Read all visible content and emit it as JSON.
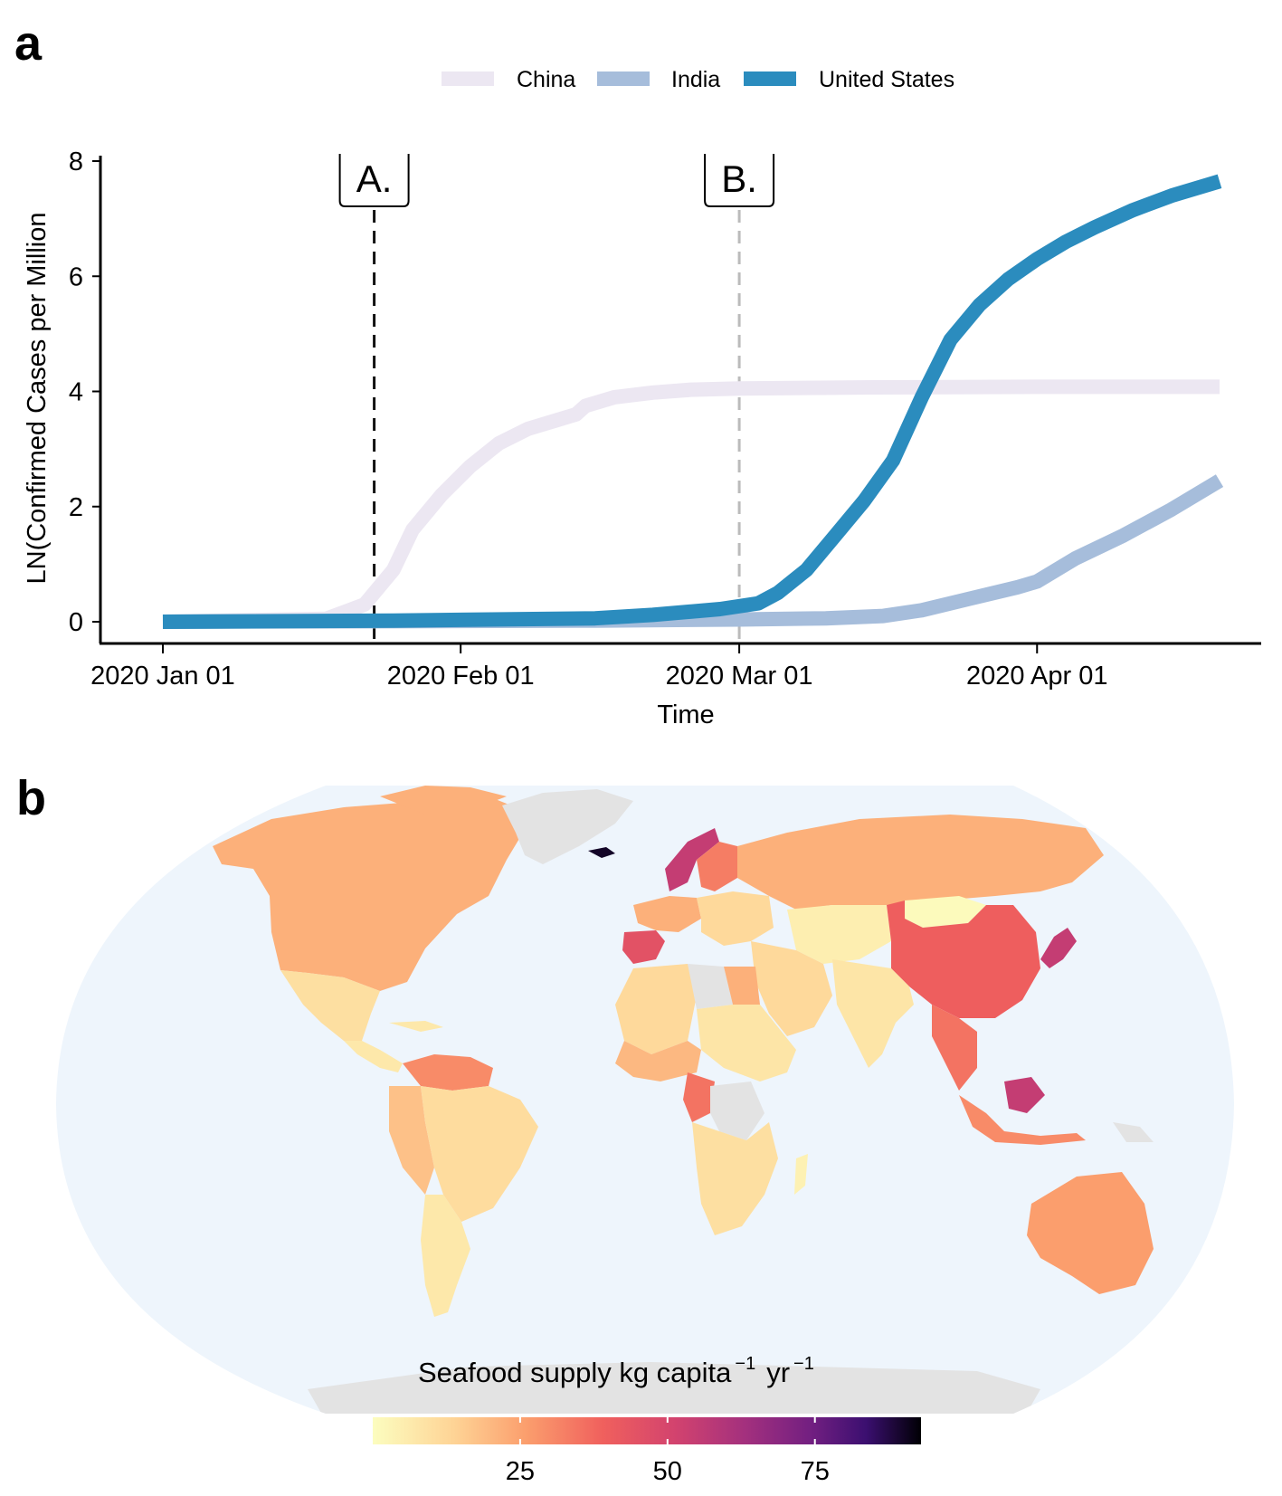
{
  "panel_a_label": "a",
  "panel_b_label": "b",
  "colors": {
    "China": "#ece7f2",
    "India": "#a6bddb",
    "United States": "#2b8cbe",
    "ocean": "#eef5fc",
    "no_data": "#e3e3e3"
  },
  "chart_data": [
    {
      "type": "line",
      "xlabel": "Time",
      "ylabel": "LN(Confirmed Cases per Million",
      "ylim": [
        0,
        8
      ],
      "yticks": [
        "0",
        "2",
        "4",
        "6",
        "8"
      ],
      "xlim": [
        "2020-01-01",
        "2020-04-20"
      ],
      "xticks": [
        {
          "date": "2020-01-01",
          "label": "2020 Jan 01"
        },
        {
          "date": "2020-02-01",
          "label": "2020 Feb 01"
        },
        {
          "date": "2020-03-01",
          "label": "2020 Mar 01"
        },
        {
          "date": "2020-04-01",
          "label": "2020 Apr 01"
        }
      ],
      "legend_position": "top",
      "grid": false,
      "vlines": [
        {
          "date": "2020-01-23",
          "label": "A.",
          "color": "#111111"
        },
        {
          "date": "2020-03-01",
          "label": "B.",
          "color": "#bbbbbb"
        }
      ],
      "series": [
        {
          "name": "China",
          "x": [
            "2020-01-01",
            "2020-01-18",
            "2020-01-22",
            "2020-01-25",
            "2020-01-27",
            "2020-01-30",
            "2020-02-02",
            "2020-02-05",
            "2020-02-08",
            "2020-02-11",
            "2020-02-13",
            "2020-02-14",
            "2020-02-17",
            "2020-02-21",
            "2020-02-25",
            "2020-03-01",
            "2020-03-15",
            "2020-04-01",
            "2020-04-20"
          ],
          "values": [
            0,
            0.05,
            0.3,
            0.9,
            1.6,
            2.2,
            2.7,
            3.1,
            3.35,
            3.5,
            3.6,
            3.75,
            3.9,
            3.98,
            4.03,
            4.05,
            4.07,
            4.08,
            4.08
          ]
        },
        {
          "name": "India",
          "x": [
            "2020-01-01",
            "2020-02-15",
            "2020-03-01",
            "2020-03-10",
            "2020-03-16",
            "2020-03-20",
            "2020-03-25",
            "2020-03-30",
            "2020-04-01",
            "2020-04-05",
            "2020-04-10",
            "2020-04-15",
            "2020-04-20"
          ],
          "values": [
            0,
            0.02,
            0.04,
            0.06,
            0.1,
            0.2,
            0.4,
            0.6,
            0.7,
            1.1,
            1.5,
            1.95,
            2.45
          ]
        },
        {
          "name": "United States",
          "x": [
            "2020-01-01",
            "2020-01-25",
            "2020-02-15",
            "2020-02-21",
            "2020-02-28",
            "2020-03-03",
            "2020-03-05",
            "2020-03-08",
            "2020-03-11",
            "2020-03-14",
            "2020-03-17",
            "2020-03-20",
            "2020-03-23",
            "2020-03-26",
            "2020-03-29",
            "2020-04-01",
            "2020-04-04",
            "2020-04-07",
            "2020-04-11",
            "2020-04-15",
            "2020-04-20"
          ],
          "values": [
            0,
            0.02,
            0.06,
            0.12,
            0.22,
            0.32,
            0.5,
            0.9,
            1.5,
            2.1,
            2.8,
            3.9,
            4.9,
            5.5,
            5.95,
            6.3,
            6.6,
            6.85,
            7.15,
            7.4,
            7.65
          ]
        }
      ]
    },
    {
      "type": "heatmap",
      "subtype": "choropleth",
      "projection": "Robinson",
      "legend_title": {
        "main": "Seafood  supply  kg  capita",
        "exp1": "−1",
        "mid": "yr",
        "exp2": "−1"
      },
      "colorbar": {
        "min": 0,
        "max": 93,
        "ticks": [
          25,
          50,
          75
        ],
        "palette": "magma-reversed",
        "position": "bottom"
      },
      "values_by_region": [
        {
          "region": "North America",
          "value": 22
        },
        {
          "region": "Greenland",
          "value": null
        },
        {
          "region": "Mexico",
          "value": 10
        },
        {
          "region": "Central America",
          "value": 7
        },
        {
          "region": "Venezuela / Guianas",
          "value": 30
        },
        {
          "region": "Andean South America",
          "value": 18
        },
        {
          "region": "Brazil",
          "value": 11
        },
        {
          "region": "Southern Cone",
          "value": 7
        },
        {
          "region": "Iberia",
          "value": 45
        },
        {
          "region": "Western Europe",
          "value": 22
        },
        {
          "region": "Central Europe",
          "value": 12
        },
        {
          "region": "Norway",
          "value": 55
        },
        {
          "region": "Sweden / Finland",
          "value": 33
        },
        {
          "region": "Iceland",
          "value": 90
        },
        {
          "region": "Russia",
          "value": 22
        },
        {
          "region": "Central Asia",
          "value": 5
        },
        {
          "region": "Middle East",
          "value": 12
        },
        {
          "region": "South Asia",
          "value": 8
        },
        {
          "region": "Mongolia",
          "value": 1
        },
        {
          "region": "China",
          "value": 40
        },
        {
          "region": "Korea / Japan",
          "value": 55
        },
        {
          "region": "Southeast Asia",
          "value": 35
        },
        {
          "region": "Borneo",
          "value": 55
        },
        {
          "region": "Indonesia",
          "value": 30
        },
        {
          "region": "Papua New Guinea",
          "value": null
        },
        {
          "region": "Australia",
          "value": 26
        },
        {
          "region": "New Zealand",
          "value": 25
        },
        {
          "region": "North Africa",
          "value": 12
        },
        {
          "region": "Libya",
          "value": null
        },
        {
          "region": "Egypt",
          "value": 22
        },
        {
          "region": "Sahel",
          "value": 8
        },
        {
          "region": "West Africa coast",
          "value": 20
        },
        {
          "region": "Central Africa",
          "value": 35
        },
        {
          "region": "DR Congo",
          "value": null
        },
        {
          "region": "Southern Africa",
          "value": 10
        },
        {
          "region": "Madagascar",
          "value": 4
        },
        {
          "region": "Antarctica",
          "value": null
        }
      ]
    }
  ]
}
